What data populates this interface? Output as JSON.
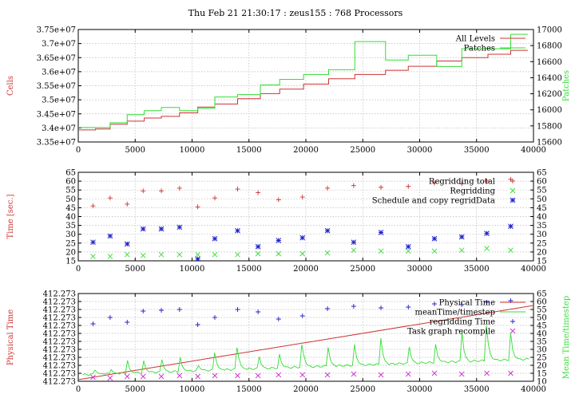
{
  "title": "Thu Feb 21 21:30:17 : zeus155 : 768 Processors",
  "colors": {
    "red": "#cc3333",
    "green": "#33dd33",
    "blue": "#2222cc",
    "magenta": "#cc33cc",
    "grid": "#bbbbbb",
    "axis": "#000000"
  },
  "chart_data": [
    {
      "type": "line",
      "ylabel": "Cells",
      "y2label": "Patches",
      "xlim": [
        0,
        40000
      ],
      "ylim": [
        33500000,
        37500000
      ],
      "y2lim": [
        15600,
        17000
      ],
      "xticks": [
        "0",
        "5000",
        "10000",
        "15000",
        "20000",
        "25000",
        "30000",
        "35000",
        "40000"
      ],
      "yticks": [
        "3.35e+07",
        "3.4e+07",
        "3.45e+07",
        "3.5e+07",
        "3.55e+07",
        "3.6e+07",
        "3.65e+07",
        "3.7e+07",
        "3.75e+07"
      ],
      "y2ticks": [
        "15600",
        "15800",
        "16000",
        "16200",
        "16400",
        "16600",
        "16800",
        "17000"
      ],
      "legend": [
        "All Levels",
        "Patches"
      ],
      "grid": true,
      "series": [
        {
          "name": "All Levels",
          "axis": "y",
          "color": "red",
          "step": true,
          "x": [
            0,
            1500,
            2800,
            4300,
            5800,
            7300,
            8900,
            10500,
            12000,
            14000,
            16000,
            17700,
            19800,
            22000,
            24300,
            27000,
            29000,
            31500,
            33700,
            36000,
            38000
          ],
          "y": [
            33930000,
            33960000,
            34130000,
            34240000,
            34350000,
            34410000,
            34540000,
            34740000,
            34850000,
            35040000,
            35220000,
            35380000,
            35560000,
            35750000,
            35900000,
            36050000,
            36190000,
            36380000,
            36500000,
            36620000,
            36760000
          ]
        },
        {
          "name": "Patches",
          "axis": "y2",
          "color": "green",
          "step": true,
          "x": [
            0,
            1500,
            2800,
            4300,
            5800,
            7300,
            8900,
            10500,
            12000,
            14000,
            16000,
            17700,
            19800,
            22000,
            24300,
            27000,
            29000,
            31500,
            33700,
            36000,
            38000
          ],
          "y": [
            15780,
            15780,
            15840,
            15940,
            15990,
            16030,
            15990,
            16020,
            16160,
            16190,
            16310,
            16380,
            16440,
            16500,
            16850,
            16620,
            16680,
            16540,
            16760,
            16760,
            16940
          ]
        }
      ]
    },
    {
      "type": "scatter",
      "ylabel": "Time [sec.]",
      "xlim": [
        0,
        40000
      ],
      "ylim": [
        15,
        65
      ],
      "y2lim": [
        15,
        65
      ],
      "xticks": [
        "0",
        "5000",
        "10000",
        "15000",
        "20000",
        "25000",
        "30000",
        "35000",
        "40000"
      ],
      "yticks": [
        "15",
        "20",
        "25",
        "30",
        "35",
        "40",
        "45",
        "50",
        "55",
        "60",
        "65"
      ],
      "y2ticks": [
        "15",
        "20",
        "25",
        "30",
        "35",
        "40",
        "45",
        "50",
        "55",
        "60",
        "65"
      ],
      "legend": [
        "Regridding total",
        "Regridding",
        "Schedule and copy regridData"
      ],
      "grid": true,
      "series": [
        {
          "name": "Regridding total",
          "color": "red",
          "marker": "plus",
          "x": [
            1300,
            2800,
            4300,
            5700,
            7300,
            8900,
            10500,
            12000,
            14000,
            15800,
            17600,
            19700,
            21900,
            24200,
            26600,
            29000,
            31300,
            33700,
            35900,
            38000
          ],
          "y": [
            46,
            50.5,
            47,
            54.5,
            54.5,
            56,
            45.5,
            50.5,
            55.5,
            53.5,
            49.5,
            51,
            56,
            57.5,
            56.5,
            57,
            59,
            58.5,
            60,
            61
          ]
        },
        {
          "name": "Regridding",
          "color": "green",
          "marker": "x",
          "x": [
            1300,
            2800,
            4300,
            5700,
            7300,
            8900,
            10500,
            12000,
            14000,
            15800,
            17600,
            19700,
            21900,
            24200,
            26600,
            29000,
            31300,
            33700,
            35900,
            38000
          ],
          "y": [
            17.5,
            17.5,
            18.5,
            18,
            18.5,
            18.5,
            18.5,
            18.5,
            18.5,
            19,
            19,
            19,
            19.5,
            21,
            20.5,
            20.5,
            20.5,
            21,
            22,
            21
          ]
        },
        {
          "name": "Schedule and copy regridData",
          "color": "blue",
          "marker": "star",
          "x": [
            1300,
            2800,
            4300,
            5700,
            7300,
            8900,
            10500,
            12000,
            14000,
            15800,
            17600,
            19700,
            21900,
            24200,
            26600,
            29000,
            31300,
            33700,
            35900,
            38000
          ],
          "y": [
            25.5,
            29,
            24.5,
            33,
            33,
            34,
            16,
            27.5,
            32,
            23,
            26.5,
            28,
            32,
            25.5,
            31,
            23,
            27.5,
            28.5,
            30.5,
            34.5
          ]
        }
      ]
    },
    {
      "type": "line",
      "ylabel": "Physical Time",
      "y2label": "Mean Time/timestep",
      "xlim": [
        0,
        40000
      ],
      "ylim": [
        0,
        11
      ],
      "y2lim": [
        10,
        65
      ],
      "xticks": [
        "0",
        "5000",
        "10000",
        "15000",
        "20000",
        "25000",
        "30000",
        "35000",
        "40000"
      ],
      "yticks": [
        "412.273",
        "412.273",
        "412.273",
        "412.273",
        "412.273",
        "412.273",
        "412.273",
        "412.273",
        "412.273",
        "412.273",
        "412.273",
        "412.273"
      ],
      "y2ticks": [
        "10",
        "15",
        "20",
        "25",
        "30",
        "35",
        "40",
        "45",
        "50",
        "55",
        "60",
        "65"
      ],
      "legend": [
        "Physical Time",
        "meanTime/timestep",
        "regridding Time",
        "Task graph recompile"
      ],
      "grid": true,
      "series": [
        {
          "name": "Physical Time",
          "axis": "y",
          "color": "red",
          "x": [
            0,
            40000
          ],
          "y": [
            0.2,
            9.5
          ]
        },
        {
          "name": "meanTime/timestep",
          "axis": "y2",
          "color": "green",
          "spikes": [
            1500,
            2800,
            4300,
            5700,
            7300,
            8900,
            10500,
            12000,
            14000,
            15800,
            17600,
            19700,
            21900,
            24200,
            26600,
            29000,
            31300,
            33700,
            35900,
            38000
          ],
          "spike_heights": [
            17,
            19,
            24,
            25,
            26,
            28,
            21,
            28,
            31,
            31,
            32,
            33,
            36,
            40,
            37,
            38,
            42,
            43,
            45,
            40
          ],
          "baseline_start": 14,
          "baseline_end": 24
        },
        {
          "name": "regridding Time",
          "axis": "y2",
          "color": "blue",
          "marker": "plus",
          "x": [
            1300,
            2800,
            4300,
            5700,
            7300,
            8900,
            10500,
            12000,
            14000,
            15800,
            17600,
            19700,
            21900,
            24200,
            26600,
            29000,
            31300,
            33700,
            35900,
            38000
          ],
          "y": [
            46,
            50,
            47,
            54,
            54.5,
            55,
            45.5,
            50,
            55,
            53.5,
            49,
            51,
            55.5,
            57,
            56,
            56.5,
            58.5,
            58,
            59.5,
            60.5
          ]
        },
        {
          "name": "Task graph recompile",
          "axis": "y2",
          "color": "magenta",
          "marker": "x",
          "x": [
            1300,
            2800,
            4300,
            5700,
            7300,
            8900,
            10500,
            12000,
            14000,
            15800,
            17600,
            19700,
            21900,
            24200,
            26600,
            29000,
            31300,
            33700,
            35900,
            38000
          ],
          "y": [
            12.5,
            12,
            13,
            13,
            13,
            13.5,
            13,
            13.5,
            13.5,
            13.5,
            14,
            14,
            14,
            14.5,
            14,
            14.5,
            15,
            14.5,
            15,
            15
          ]
        }
      ]
    }
  ]
}
